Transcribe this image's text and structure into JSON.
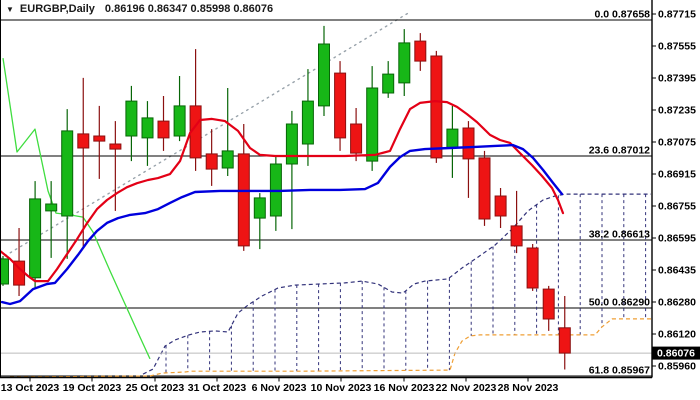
{
  "window": {
    "title_arrow": "▼",
    "symbol": "EURGBP,Daily",
    "ohlc": "0.86196 0.86347 0.85998 0.86076"
  },
  "colors": {
    "background": "#ffffff",
    "bull_fill": "#17b717",
    "bull_border": "#076607",
    "bear_fill": "#ee1414",
    "bear_border": "#8b1010",
    "ma_red": "#e30016",
    "ma_blue": "#0000dd",
    "chikou_green": "#3fdd3f",
    "cloud_line": "#32327a",
    "senkou_b_orange": "#ef9f35",
    "trendline_gray": "#99a3ab",
    "fib_line": "#000000",
    "bid_line": "#bbbbbb",
    "badge_bg": "#000000",
    "badge_fg": "#ffffff",
    "axis_text": "#000000",
    "border": "#000000"
  },
  "y_axis": {
    "labels": [
      "0.87715",
      "0.87555",
      "0.87395",
      "0.87235",
      "0.87075",
      "0.86915",
      "0.86755",
      "0.86595",
      "0.86435",
      "0.86280",
      "0.86120",
      "0.85960"
    ],
    "first_y": 14,
    "step": 32
  },
  "x_axis": {
    "labels": [
      "13 Oct 2023",
      "19 Oct 2023",
      "25 Oct 2023",
      "31 Oct 2023",
      "6 Nov 2023",
      "10 Nov 2023",
      "16 Nov 2023",
      "22 Nov 2023",
      "28 Nov 2023"
    ],
    "positions": [
      30,
      92,
      155,
      217,
      279,
      341,
      404,
      466,
      528
    ]
  },
  "bid": {
    "text": "0.86076",
    "value": 0.86076
  },
  "fib_levels": [
    {
      "text": "0.0 0.87658",
      "price": 0.87658
    },
    {
      "text": "23.6 0.87012",
      "price": 0.87012
    },
    {
      "text": "38.2 0.86613",
      "price": 0.86613
    },
    {
      "text": "50.0 0.86290",
      "price": 0.8629
    },
    {
      "text": "61.8 0.85967",
      "price": 0.85967
    }
  ],
  "chart_data": {
    "type": "candlestick",
    "symbol": "EURGBP",
    "timeframe": "Daily",
    "title": "EURGBP,Daily",
    "ylim": [
      0.8596,
      0.87715
    ],
    "last_quote": {
      "open": 0.86196,
      "high": 0.86347,
      "low": 0.85998,
      "close": 0.86076
    },
    "candles": [
      {
        "o": 0.86404,
        "h": 0.86537,
        "l": 0.86395,
        "c": 0.86523
      },
      {
        "o": 0.86513,
        "h": 0.8667,
        "l": 0.86347,
        "c": 0.86399
      },
      {
        "o": 0.86433,
        "h": 0.86893,
        "l": 0.86385,
        "c": 0.86808
      },
      {
        "o": 0.86751,
        "h": 0.86893,
        "l": 0.86528,
        "c": 0.86784
      },
      {
        "o": 0.86727,
        "h": 0.87235,
        "l": 0.86523,
        "c": 0.87131
      },
      {
        "o": 0.87117,
        "h": 0.87383,
        "l": 0.86575,
        "c": 0.8705
      },
      {
        "o": 0.87107,
        "h": 0.8725,
        "l": 0.86903,
        "c": 0.87083
      },
      {
        "o": 0.87069,
        "h": 0.87178,
        "l": 0.86751,
        "c": 0.87045
      },
      {
        "o": 0.87107,
        "h": 0.87345,
        "l": 0.86988,
        "c": 0.87273
      },
      {
        "o": 0.87098,
        "h": 0.87273,
        "l": 0.86965,
        "c": 0.87193
      },
      {
        "o": 0.87178,
        "h": 0.87297,
        "l": 0.87036,
        "c": 0.87098
      },
      {
        "o": 0.87107,
        "h": 0.87392,
        "l": 0.87083,
        "c": 0.8725
      },
      {
        "o": 0.8725,
        "h": 0.8752,
        "l": 0.86941,
        "c": 0.87003
      },
      {
        "o": 0.87022,
        "h": 0.8714,
        "l": 0.8687,
        "c": 0.8695
      },
      {
        "o": 0.86955,
        "h": 0.87335,
        "l": 0.86917,
        "c": 0.87036
      },
      {
        "o": 0.87022,
        "h": 0.87164,
        "l": 0.86561,
        "c": 0.86585
      },
      {
        "o": 0.86717,
        "h": 0.86836,
        "l": 0.8657,
        "c": 0.86813
      },
      {
        "o": 0.86727,
        "h": 0.87012,
        "l": 0.86656,
        "c": 0.86974
      },
      {
        "o": 0.86974,
        "h": 0.87226,
        "l": 0.86665,
        "c": 0.87164
      },
      {
        "o": 0.87069,
        "h": 0.87425,
        "l": 0.86965,
        "c": 0.87273
      },
      {
        "o": 0.8725,
        "h": 0.8763,
        "l": 0.87202,
        "c": 0.87544
      },
      {
        "o": 0.87406,
        "h": 0.87463,
        "l": 0.87036,
        "c": 0.87098
      },
      {
        "o": 0.87164,
        "h": 0.8724,
        "l": 0.86988,
        "c": 0.87026
      },
      {
        "o": 0.86988,
        "h": 0.87439,
        "l": 0.86941,
        "c": 0.87335
      },
      {
        "o": 0.87311,
        "h": 0.87463,
        "l": 0.87288,
        "c": 0.87401
      },
      {
        "o": 0.87359,
        "h": 0.87615,
        "l": 0.87297,
        "c": 0.87549
      },
      {
        "o": 0.87558,
        "h": 0.87596,
        "l": 0.87416,
        "c": 0.87463
      },
      {
        "o": 0.87487,
        "h": 0.87511,
        "l": 0.86979,
        "c": 0.87003
      },
      {
        "o": 0.8705,
        "h": 0.8725,
        "l": 0.86908,
        "c": 0.8714
      },
      {
        "o": 0.87145,
        "h": 0.87178,
        "l": 0.86813,
        "c": 0.86998
      },
      {
        "o": 0.87003,
        "h": 0.87036,
        "l": 0.8668,
        "c": 0.86713
      },
      {
        "o": 0.86822,
        "h": 0.8686,
        "l": 0.8667,
        "c": 0.86727
      },
      {
        "o": 0.8668,
        "h": 0.86846,
        "l": 0.86551,
        "c": 0.86585
      },
      {
        "o": 0.86575,
        "h": 0.86594,
        "l": 0.86371,
        "c": 0.86385
      },
      {
        "o": 0.8638,
        "h": 0.86395,
        "l": 0.86181,
        "c": 0.86238
      },
      {
        "o": 0.86196,
        "h": 0.86347,
        "l": 0.85998,
        "c": 0.86076
      }
    ],
    "overlays": {
      "ma_red": [
        [
          0,
          0.86561
        ],
        [
          10,
          0.86523
        ],
        [
          20,
          0.86475
        ],
        [
          28,
          0.86442
        ],
        [
          35,
          0.86418
        ],
        [
          48,
          0.86418
        ],
        [
          57,
          0.86475
        ],
        [
          67,
          0.86546
        ],
        [
          77,
          0.86617
        ],
        [
          87,
          0.86693
        ],
        [
          97,
          0.8676
        ],
        [
          107,
          0.86803
        ],
        [
          117,
          0.86836
        ],
        [
          127,
          0.86864
        ],
        [
          137,
          0.86883
        ],
        [
          148,
          0.86898
        ],
        [
          158,
          0.86907
        ],
        [
          170,
          0.86926
        ],
        [
          180,
          0.86988
        ],
        [
          190,
          0.87121
        ],
        [
          200,
          0.87183
        ],
        [
          212,
          0.87188
        ],
        [
          225,
          0.87178
        ],
        [
          238,
          0.87131
        ],
        [
          250,
          0.8705
        ],
        [
          260,
          0.87017
        ],
        [
          275,
          0.87012
        ],
        [
          310,
          0.87012
        ],
        [
          345,
          0.87012
        ],
        [
          375,
          0.87017
        ],
        [
          390,
          0.87036
        ],
        [
          400,
          0.8714
        ],
        [
          410,
          0.87235
        ],
        [
          420,
          0.87264
        ],
        [
          435,
          0.87273
        ],
        [
          447,
          0.87268
        ],
        [
          457,
          0.87245
        ],
        [
          467,
          0.87211
        ],
        [
          477,
          0.87173
        ],
        [
          490,
          0.87112
        ],
        [
          500,
          0.87088
        ],
        [
          510,
          0.87074
        ],
        [
          520,
          0.87026
        ],
        [
          532,
          0.86969
        ],
        [
          542,
          0.86917
        ],
        [
          552,
          0.8686
        ],
        [
          558,
          0.86803
        ],
        [
          563,
          0.86741
        ]
      ],
      "ma_blue": [
        [
          2,
          0.86318
        ],
        [
          10,
          0.86309
        ],
        [
          20,
          0.86323
        ],
        [
          33,
          0.8638
        ],
        [
          47,
          0.86404
        ],
        [
          55,
          0.86409
        ],
        [
          67,
          0.86475
        ],
        [
          78,
          0.86542
        ],
        [
          88,
          0.86608
        ],
        [
          97,
          0.86656
        ],
        [
          107,
          0.86694
        ],
        [
          118,
          0.86717
        ],
        [
          130,
          0.86732
        ],
        [
          145,
          0.86741
        ],
        [
          158,
          0.8676
        ],
        [
          170,
          0.86789
        ],
        [
          182,
          0.86817
        ],
        [
          195,
          0.86841
        ],
        [
          220,
          0.86846
        ],
        [
          250,
          0.86846
        ],
        [
          280,
          0.86846
        ],
        [
          310,
          0.86851
        ],
        [
          340,
          0.86851
        ],
        [
          365,
          0.86855
        ],
        [
          378,
          0.86884
        ],
        [
          390,
          0.8696
        ],
        [
          400,
          0.87007
        ],
        [
          410,
          0.87036
        ],
        [
          425,
          0.87045
        ],
        [
          450,
          0.8705
        ],
        [
          475,
          0.87055
        ],
        [
          495,
          0.8706
        ],
        [
          513,
          0.87064
        ],
        [
          523,
          0.87045
        ],
        [
          533,
          0.87003
        ],
        [
          543,
          0.86946
        ],
        [
          553,
          0.86884
        ],
        [
          562,
          0.86831
        ]
      ],
      "chikou_green": [
        [
          3,
          0.87477
        ],
        [
          17,
          0.87031
        ],
        [
          35,
          0.8714
        ],
        [
          48,
          0.86846
        ],
        [
          56,
          0.86741
        ],
        [
          70,
          0.86732
        ],
        [
          83,
          0.86722
        ],
        [
          93,
          0.86651
        ],
        [
          110,
          0.86466
        ],
        [
          125,
          0.86309
        ],
        [
          140,
          0.86152
        ],
        [
          150,
          0.86048
        ]
      ],
      "senkou_a": [
        [
          143,
          0.85976
        ],
        [
          153,
          0.86
        ],
        [
          165,
          0.86109
        ],
        [
          175,
          0.86138
        ],
        [
          188,
          0.86161
        ],
        [
          200,
          0.86176
        ],
        [
          215,
          0.86181
        ],
        [
          228,
          0.86176
        ],
        [
          238,
          0.86266
        ],
        [
          248,
          0.86304
        ],
        [
          262,
          0.86347
        ],
        [
          278,
          0.86385
        ],
        [
          295,
          0.86399
        ],
        [
          320,
          0.86404
        ],
        [
          345,
          0.86409
        ],
        [
          362,
          0.86418
        ],
        [
          378,
          0.86404
        ],
        [
          392,
          0.86366
        ],
        [
          403,
          0.86361
        ],
        [
          414,
          0.86404
        ],
        [
          425,
          0.86418
        ],
        [
          448,
          0.86428
        ],
        [
          462,
          0.8648
        ],
        [
          478,
          0.86532
        ],
        [
          495,
          0.86589
        ],
        [
          512,
          0.86665
        ],
        [
          528,
          0.86751
        ],
        [
          543,
          0.86803
        ],
        [
          555,
          0.86822
        ],
        [
          565,
          0.86831
        ],
        [
          651,
          0.86831
        ]
      ],
      "senkou_b": [
        [
          10,
          0.85962
        ],
        [
          150,
          0.85967
        ],
        [
          162,
          0.85981
        ],
        [
          185,
          0.85986
        ],
        [
          192,
          0.8599
        ],
        [
          300,
          0.8599
        ],
        [
          450,
          0.85995
        ],
        [
          455,
          0.86076
        ],
        [
          462,
          0.86133
        ],
        [
          470,
          0.86157
        ],
        [
          480,
          0.86162
        ],
        [
          595,
          0.86162
        ],
        [
          602,
          0.862
        ],
        [
          612,
          0.86238
        ],
        [
          651,
          0.86238
        ]
      ],
      "trendline": {
        "x1": 0,
        "p1": 0.86523,
        "x2": 410,
        "p2": 0.87696
      }
    }
  }
}
